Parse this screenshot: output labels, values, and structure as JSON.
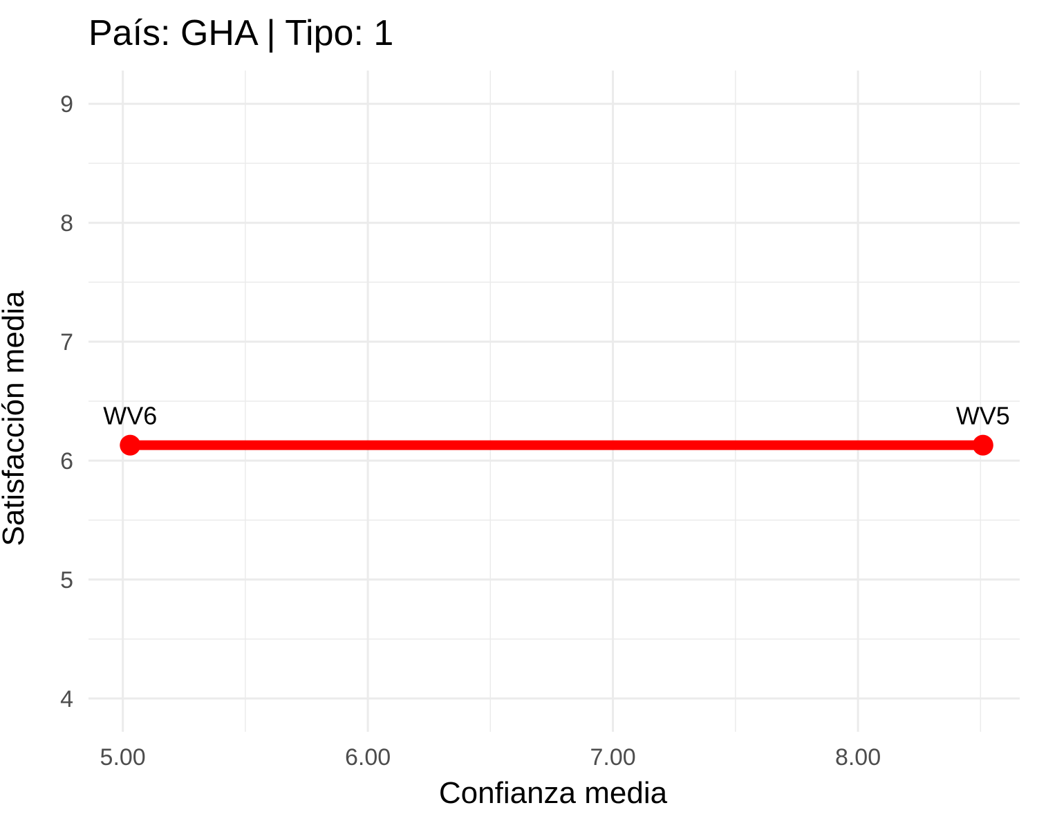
{
  "chart_data": {
    "type": "line",
    "title": "País: GHA | Tipo: 1",
    "xlabel": "Confianza media",
    "ylabel": "Satisfacción media",
    "xlim": [
      4.86,
      8.66
    ],
    "ylim": [
      3.72,
      9.28
    ],
    "x_ticks": [
      5.0,
      6.0,
      7.0,
      8.0
    ],
    "x_tick_labels": [
      "5.00",
      "6.00",
      "7.00",
      "8.00"
    ],
    "y_ticks": [
      4,
      5,
      6,
      7,
      8,
      9
    ],
    "y_tick_labels": [
      "4",
      "5",
      "6",
      "7",
      "8",
      "9"
    ],
    "grid": true,
    "series": [
      {
        "color": "#ff0000",
        "points": [
          {
            "x": 5.03,
            "y": 6.13,
            "label": "WV6"
          },
          {
            "x": 8.51,
            "y": 6.13,
            "label": "WV5"
          }
        ]
      }
    ]
  }
}
